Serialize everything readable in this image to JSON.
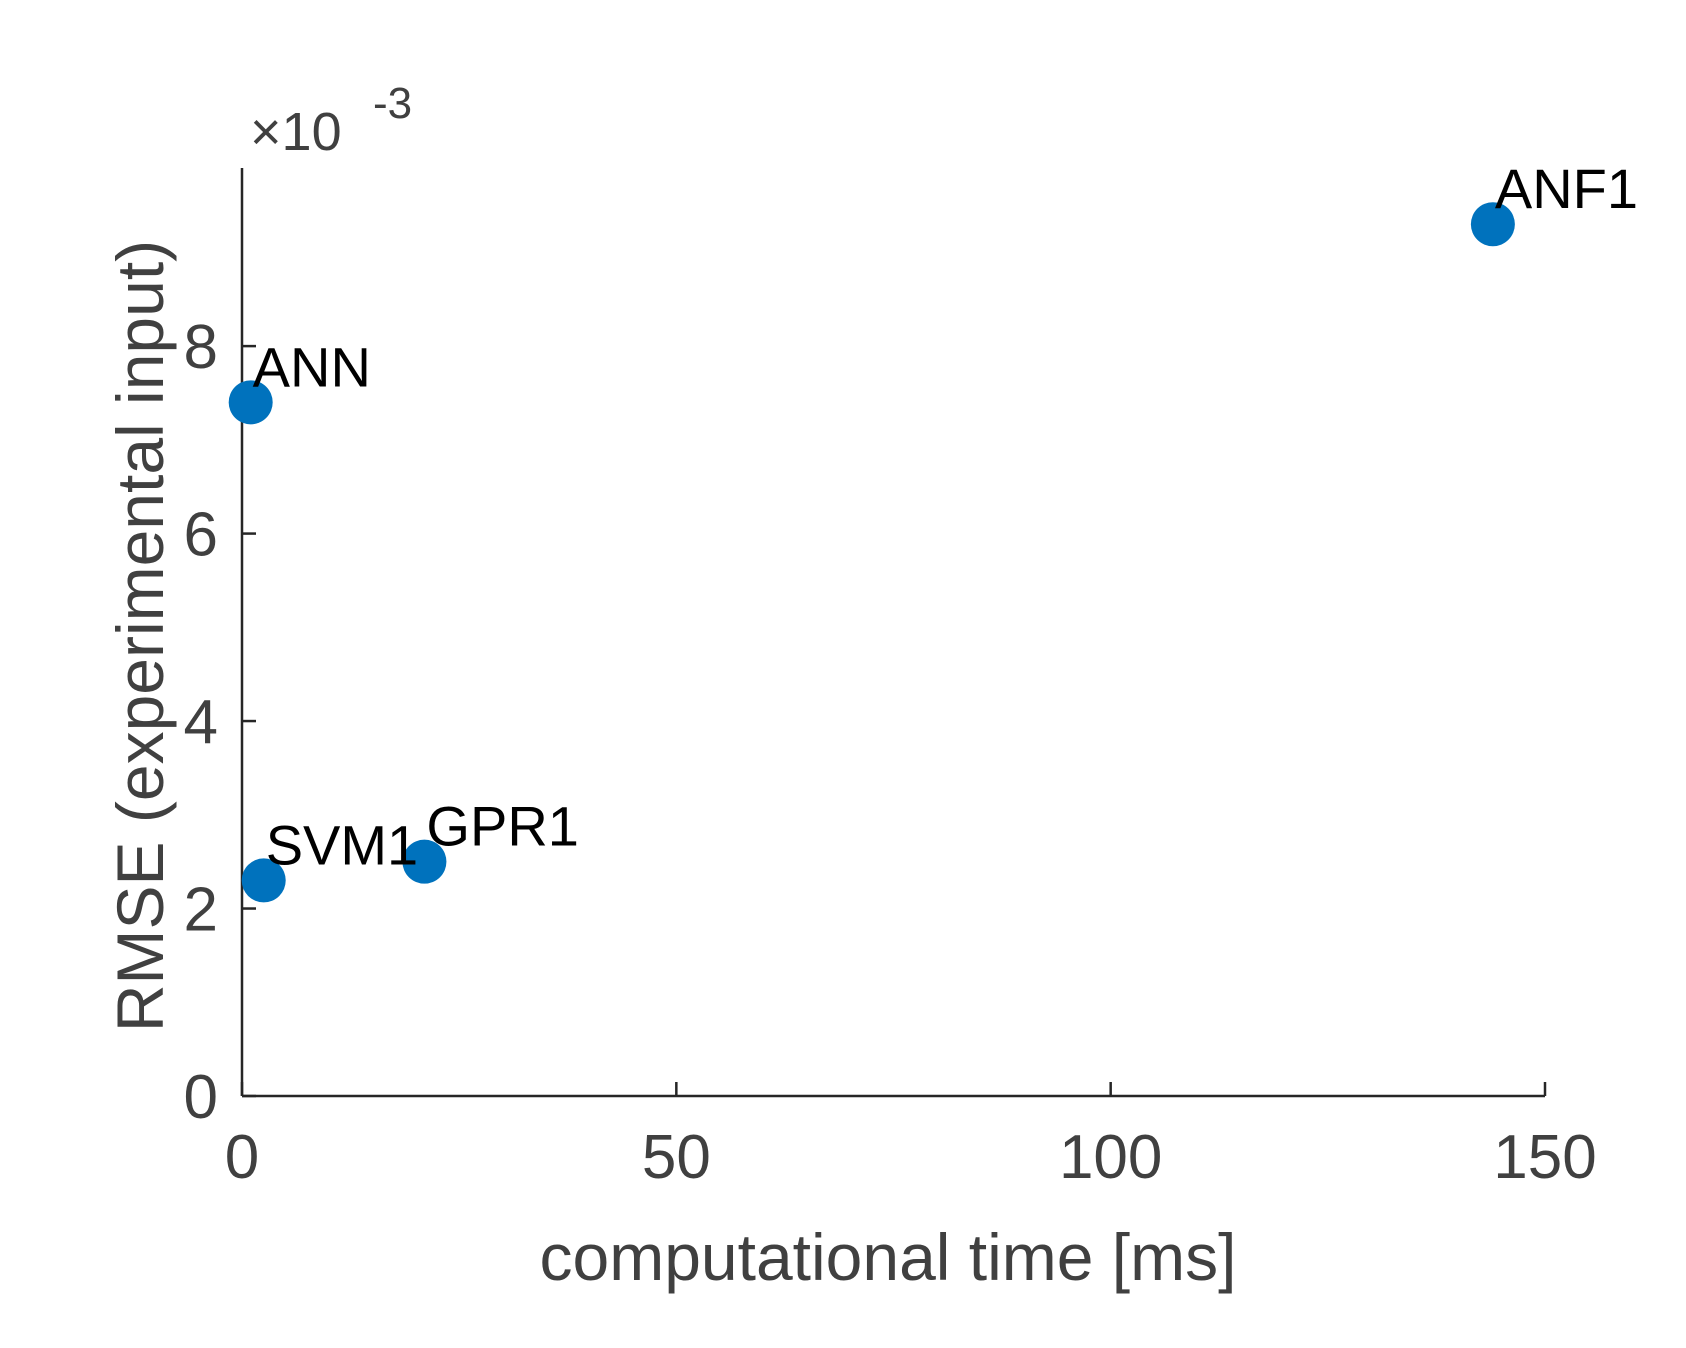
{
  "chart_data": {
    "type": "scatter",
    "title": "",
    "xlabel": "computational time [ms]",
    "ylabel": "RMSE (experimental input)",
    "xlim": [
      0,
      150
    ],
    "ylim": [
      0,
      0.0099
    ],
    "x_ticks": [
      0,
      50,
      100,
      150
    ],
    "x_tick_labels": [
      "0",
      "50",
      "100",
      "150"
    ],
    "y_ticks": [
      0,
      0.002,
      0.004,
      0.006,
      0.008
    ],
    "y_tick_labels": [
      "0",
      "2",
      "4",
      "6",
      "8"
    ],
    "y_exponent_label": {
      "base": "×10",
      "exponent": "-3"
    },
    "grid": false,
    "marker_color": "#0072BD",
    "points": [
      {
        "label": "ANN",
        "x": 1.0,
        "y": 0.0074
      },
      {
        "label": "SVM1",
        "x": 2.5,
        "y": 0.0023
      },
      {
        "label": "GPR1",
        "x": 21.0,
        "y": 0.0025
      },
      {
        "label": "ANF1",
        "x": 144.0,
        "y": 0.0093
      }
    ]
  }
}
